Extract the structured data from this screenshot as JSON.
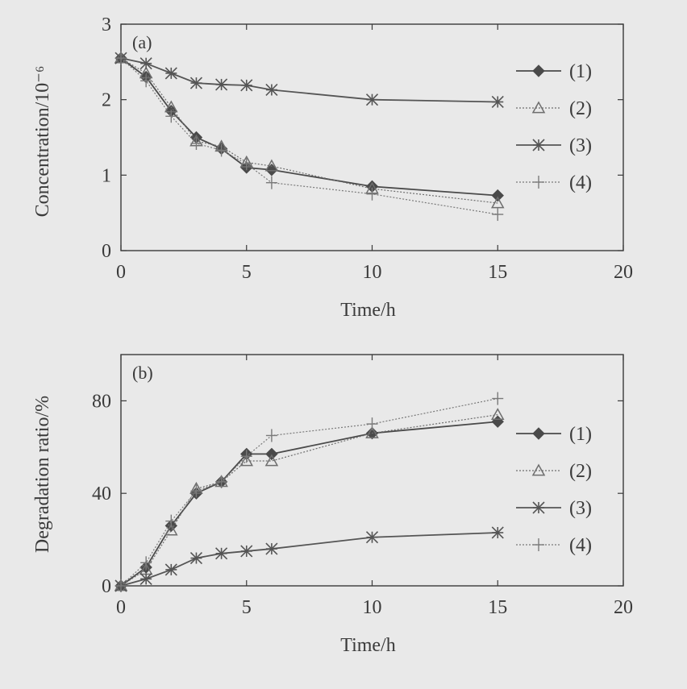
{
  "figure": {
    "background": "#e9e9e9",
    "ink": "#3a3a3a"
  },
  "chart_data": [
    {
      "id": "a",
      "type": "line",
      "panel_label": "(a)",
      "xlabel": "Time/h",
      "ylabel": "Concentration/10⁻⁶",
      "xlim": [
        0,
        20
      ],
      "ylim": [
        0,
        3
      ],
      "xticks": [
        0,
        5,
        10,
        15,
        20
      ],
      "yticks": [
        0,
        1,
        2,
        3
      ],
      "grid": false,
      "legend_position": "right",
      "series": [
        {
          "name": "(1)",
          "marker": "diamond",
          "color": "#4a4a4a",
          "x": [
            0,
            1,
            2,
            3,
            4,
            5,
            6,
            10,
            15
          ],
          "y": [
            2.55,
            2.3,
            1.85,
            1.5,
            1.35,
            1.1,
            1.07,
            0.85,
            0.73
          ]
        },
        {
          "name": "(2)",
          "marker": "triangle",
          "color": "#6e6e6e",
          "dashed": true,
          "x": [
            0,
            1,
            2,
            3,
            4,
            5,
            6,
            10,
            15
          ],
          "y": [
            2.55,
            2.35,
            1.9,
            1.45,
            1.38,
            1.17,
            1.12,
            0.82,
            0.63
          ]
        },
        {
          "name": "(3)",
          "marker": "asterisk",
          "color": "#555555",
          "x": [
            0,
            1,
            2,
            3,
            4,
            5,
            6,
            10,
            15
          ],
          "y": [
            2.55,
            2.48,
            2.35,
            2.22,
            2.2,
            2.19,
            2.13,
            2.0,
            1.97
          ]
        },
        {
          "name": "(4)",
          "marker": "plus",
          "color": "#7a7a7a",
          "dashed": true,
          "x": [
            0,
            1,
            2,
            3,
            4,
            5,
            6,
            10,
            15
          ],
          "y": [
            2.55,
            2.25,
            1.78,
            1.42,
            1.33,
            1.15,
            0.9,
            0.75,
            0.48
          ]
        }
      ]
    },
    {
      "id": "b",
      "type": "line",
      "panel_label": "(b)",
      "xlabel": "Time/h",
      "ylabel": "Degradation ratio/%",
      "xlim": [
        0,
        20
      ],
      "ylim": [
        0,
        100
      ],
      "xticks": [
        0,
        5,
        10,
        15,
        20
      ],
      "yticks": [
        0,
        40,
        80
      ],
      "grid": false,
      "legend_position": "right",
      "series": [
        {
          "name": "(1)",
          "marker": "diamond",
          "color": "#4a4a4a",
          "x": [
            0,
            1,
            2,
            3,
            4,
            5,
            6,
            10,
            15
          ],
          "y": [
            0,
            8,
            26,
            40,
            45,
            57,
            57,
            66,
            71
          ]
        },
        {
          "name": "(2)",
          "marker": "triangle",
          "color": "#6e6e6e",
          "dashed": true,
          "x": [
            0,
            1,
            2,
            3,
            4,
            5,
            6,
            10,
            15
          ],
          "y": [
            0,
            7,
            24,
            42,
            45,
            54,
            54,
            66,
            74
          ]
        },
        {
          "name": "(3)",
          "marker": "asterisk",
          "color": "#555555",
          "x": [
            0,
            1,
            2,
            3,
            4,
            5,
            6,
            10,
            15
          ],
          "y": [
            0,
            3,
            7,
            12,
            14,
            15,
            16,
            21,
            23
          ]
        },
        {
          "name": "(4)",
          "marker": "plus",
          "color": "#7a7a7a",
          "dashed": true,
          "x": [
            0,
            1,
            2,
            3,
            4,
            5,
            6,
            10,
            15
          ],
          "y": [
            0,
            10,
            28,
            41,
            45,
            56,
            65,
            70,
            81
          ]
        }
      ]
    }
  ]
}
